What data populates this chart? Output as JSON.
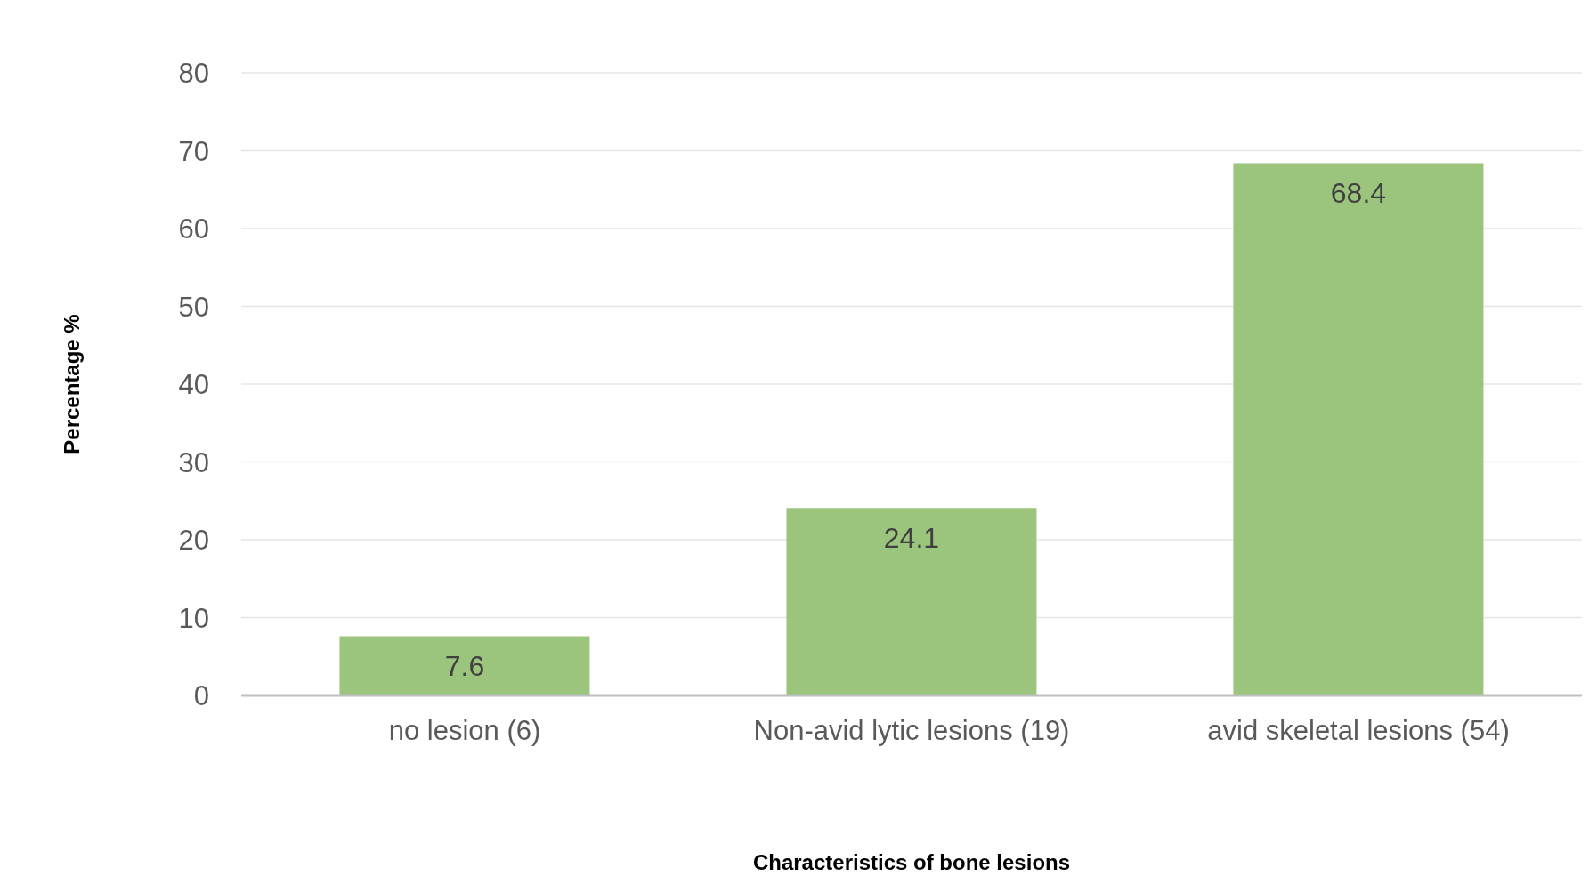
{
  "chart_data": {
    "type": "bar",
    "xlabel": "Characteristics of bone lesions",
    "ylabel": "Percentage %",
    "categories": [
      "no lesion (6)",
      "Non-avid lytic lesions (19)",
      "avid skeletal lesions (54)"
    ],
    "values": [
      7.6,
      24.1,
      68.4
    ],
    "color": "#9bc47c",
    "ylim": [
      0,
      80
    ],
    "yticks": [
      0,
      10,
      20,
      30,
      40,
      50,
      60,
      70,
      80
    ],
    "grid": "y",
    "data_labels": true
  }
}
